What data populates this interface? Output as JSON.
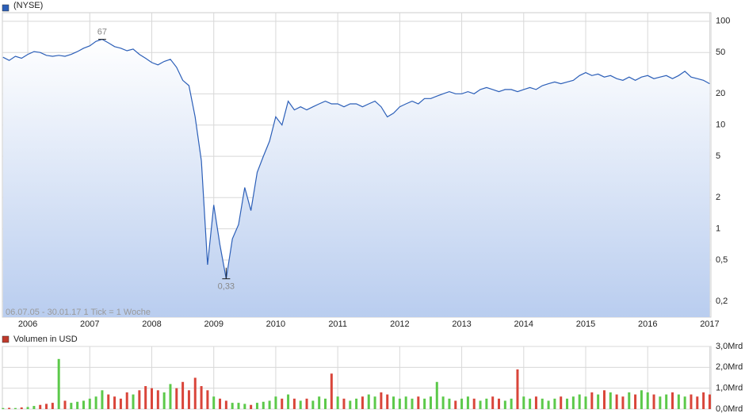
{
  "chart_data": {
    "type": "line",
    "log_y": true,
    "grid": true,
    "footnote": "06.07.05 - 30.01.17   1 Tick = 1 Woche",
    "x": [
      2005.6,
      2005.7,
      2005.8,
      2005.9,
      2006.0,
      2006.1,
      2006.2,
      2006.3,
      2006.4,
      2006.5,
      2006.6,
      2006.7,
      2006.8,
      2006.9,
      2007.0,
      2007.1,
      2007.2,
      2007.3,
      2007.4,
      2007.5,
      2007.6,
      2007.7,
      2007.8,
      2007.9,
      2008.0,
      2008.1,
      2008.2,
      2008.3,
      2008.4,
      2008.5,
      2008.6,
      2008.7,
      2008.8,
      2008.9,
      2009.0,
      2009.1,
      2009.2,
      2009.3,
      2009.4,
      2009.5,
      2009.6,
      2009.7,
      2009.8,
      2009.9,
      2010.0,
      2010.1,
      2010.2,
      2010.3,
      2010.4,
      2010.5,
      2010.6,
      2010.7,
      2010.8,
      2010.9,
      2011.0,
      2011.1,
      2011.2,
      2011.3,
      2011.4,
      2011.5,
      2011.6,
      2011.7,
      2011.8,
      2011.9,
      2012.0,
      2012.1,
      2012.2,
      2012.3,
      2012.4,
      2012.5,
      2012.6,
      2012.7,
      2012.8,
      2012.9,
      2013.0,
      2013.1,
      2013.2,
      2013.3,
      2013.4,
      2013.5,
      2013.6,
      2013.7,
      2013.8,
      2013.9,
      2014.0,
      2014.1,
      2014.2,
      2014.3,
      2014.4,
      2014.5,
      2014.6,
      2014.7,
      2014.8,
      2014.9,
      2015.0,
      2015.1,
      2015.2,
      2015.3,
      2015.4,
      2015.5,
      2015.6,
      2015.7,
      2015.8,
      2015.9,
      2016.0,
      2016.1,
      2016.2,
      2016.3,
      2016.4,
      2016.5,
      2016.6,
      2016.7,
      2016.8,
      2016.9,
      2017.0
    ],
    "series": [
      {
        "name": "(NYSE)",
        "color": "#2c5fb8",
        "values": [
          45,
          42,
          46,
          44,
          48,
          51,
          50,
          47,
          46,
          47,
          46,
          48,
          51,
          55,
          58,
          64,
          67,
          62,
          57,
          55,
          52,
          54,
          48,
          44,
          40,
          38,
          41,
          43,
          36,
          27,
          24,
          12,
          4.5,
          0.45,
          1.7,
          0.7,
          0.33,
          0.8,
          1.1,
          2.5,
          1.5,
          3.5,
          5,
          7,
          12,
          10,
          17,
          14,
          15,
          14,
          15,
          16,
          17,
          16,
          16,
          15,
          16,
          16,
          15,
          16,
          17,
          15,
          12,
          13,
          15,
          16,
          17,
          16,
          18,
          18,
          19,
          20,
          21,
          20,
          20,
          21,
          20,
          22,
          23,
          22,
          21,
          22,
          22,
          21,
          22,
          23,
          22,
          24,
          25,
          26,
          25,
          26,
          27,
          30,
          32,
          30,
          31,
          29,
          30,
          28,
          27,
          29,
          27,
          29,
          30,
          28,
          29,
          30,
          28,
          30,
          33,
          29,
          28,
          27,
          25
        ]
      }
    ],
    "annotations": [
      {
        "label": "67",
        "x": 2007.2,
        "y": 67
      },
      {
        "label": "0,33",
        "x": 2009.2,
        "y": 0.33
      }
    ],
    "xlim": [
      2005.59,
      2017.02
    ],
    "xticks": [
      2006,
      2007,
      2008,
      2009,
      2010,
      2011,
      2012,
      2013,
      2014,
      2015,
      2016,
      2017
    ],
    "ylim": [
      0.141,
      121
    ],
    "yticks": [
      100,
      50,
      20,
      10,
      5,
      2,
      1,
      {
        "value": 0.5,
        "label": "0,5"
      },
      {
        "value": 0.2,
        "label": "0,2"
      }
    ],
    "volume": {
      "name": "Volumen in USD",
      "color": "#c0392b",
      "up_color": "#5cc94a",
      "down_color": "#d9453a",
      "ylim": [
        0,
        3
      ],
      "yticks": [
        {
          "value": 3,
          "label": "3,0Mrd"
        },
        {
          "value": 2,
          "label": "2,0Mrd"
        },
        {
          "value": 1,
          "label": "1,0Mrd"
        },
        {
          "value": 0,
          "label": "0,0Mrd"
        }
      ],
      "values": [
        0.05,
        0.06,
        0.05,
        0.08,
        0.1,
        0.15,
        0.2,
        0.25,
        0.3,
        2.4,
        0.4,
        0.3,
        0.35,
        0.4,
        0.5,
        0.6,
        0.9,
        0.7,
        0.6,
        0.5,
        0.8,
        0.7,
        0.9,
        1.1,
        1.0,
        0.9,
        0.8,
        1.2,
        1.0,
        1.3,
        0.9,
        1.5,
        1.1,
        0.9,
        0.6,
        0.5,
        0.4,
        0.3,
        0.3,
        0.25,
        0.2,
        0.3,
        0.35,
        0.4,
        0.6,
        0.5,
        0.7,
        0.5,
        0.4,
        0.5,
        0.4,
        0.6,
        0.5,
        1.7,
        0.6,
        0.5,
        0.4,
        0.5,
        0.6,
        0.7,
        0.6,
        0.8,
        0.7,
        0.6,
        0.5,
        0.6,
        0.5,
        0.6,
        0.5,
        0.6,
        1.3,
        0.6,
        0.5,
        0.4,
        0.5,
        0.6,
        0.5,
        0.4,
        0.5,
        0.6,
        0.5,
        0.4,
        0.5,
        1.9,
        0.6,
        0.5,
        0.6,
        0.5,
        0.4,
        0.5,
        0.6,
        0.5,
        0.6,
        0.7,
        0.6,
        0.8,
        0.7,
        0.9,
        0.8,
        0.7,
        0.6,
        0.8,
        0.7,
        0.9,
        0.8,
        0.7,
        0.6,
        0.7,
        0.8,
        0.7,
        0.6,
        0.7,
        0.6,
        0.8,
        0.7
      ]
    }
  }
}
